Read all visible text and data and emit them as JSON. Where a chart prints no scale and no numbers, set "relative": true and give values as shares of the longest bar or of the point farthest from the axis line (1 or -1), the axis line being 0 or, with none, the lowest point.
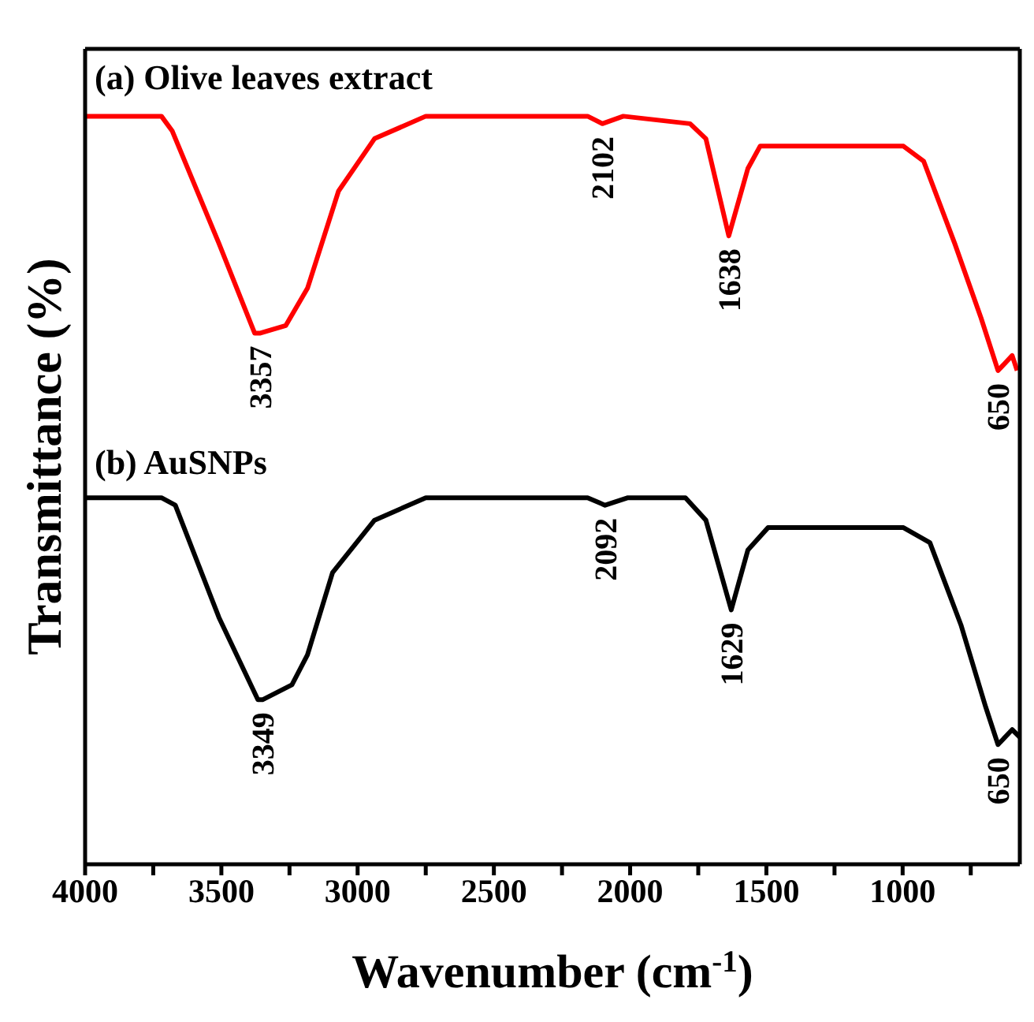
{
  "chart_data": {
    "type": "line",
    "relative": true,
    "xlabel": "Wavenumber (cm$^{-1}$)",
    "ylabel": "Transmittance (%)",
    "xlim": [
      4000,
      570
    ],
    "xticks": [
      4000,
      {
        "value": 3750,
        "label": null
      },
      3500,
      {
        "value": 3250,
        "label": null
      },
      3000,
      {
        "value": 2750,
        "label": null
      },
      2500,
      {
        "value": 2250,
        "label": null
      },
      2000,
      {
        "value": 1750,
        "label": null
      },
      1500,
      {
        "value": 1250,
        "label": null
      },
      1000,
      {
        "value": 750,
        "label": null
      }
    ],
    "series": [
      {
        "name": "(a) Olive leaves extract",
        "color": "#ff0000",
        "x": [
          4000,
          3720,
          3680,
          3509,
          3378,
          3357,
          3264,
          3184,
          3070,
          2938,
          2750,
          2556,
          2368,
          2156,
          2102,
          2025,
          1780,
          1722,
          1638,
          1568,
          1523,
          997,
          923,
          809,
          712,
          650,
          598,
          580
        ],
        "values": [
          1.0,
          1.0,
          0.98,
          0.83,
          0.71,
          0.71,
          0.72,
          0.77,
          0.9,
          0.97,
          1.0,
          1,
          1.0,
          1.0,
          0.99,
          1.0,
          0.99,
          0.97,
          0.84,
          0.93,
          0.96,
          0.96,
          0.94,
          0.83,
          0.73,
          0.66,
          0.68,
          0.66
        ]
      },
      {
        "name": "(b) AuSNPs",
        "color": "#000000",
        "x": [
          4000,
          3720,
          3669,
          3509,
          3366,
          3349,
          3241,
          3184,
          3092,
          2938,
          2750,
          2556,
          2368,
          2156,
          2092,
          2008,
          1797,
          1722,
          1629,
          1568,
          1494,
          997,
          900,
          786,
          695,
          650,
          598,
          570
        ],
        "values": [
          0.49,
          0.49,
          0.48,
          0.33,
          0.22,
          0.22,
          0.24,
          0.28,
          0.39,
          0.46,
          0.49,
          0.49,
          0.49,
          0.49,
          0.48,
          0.49,
          0.49,
          0.46,
          0.34,
          0.42,
          0.45,
          0.45,
          0.43,
          0.32,
          0.21,
          0.16,
          0.18,
          0.17
        ]
      }
    ],
    "annotations": [
      {
        "text": "3357",
        "x": 3357,
        "y": 0.71
      },
      {
        "text": "2102",
        "x": 2102,
        "y": 0.99
      },
      {
        "text": "1638",
        "x": 1638,
        "y": 0.84
      },
      {
        "text": "650",
        "x": 650,
        "y": 0.66
      },
      {
        "text": "3349",
        "x": 3349,
        "y": 0.22
      },
      {
        "text": "2092",
        "x": 2092,
        "y": 0.48
      },
      {
        "text": "1629",
        "x": 1629,
        "y": 0.34
      },
      {
        "text": "650",
        "x": 650,
        "y": 0.16
      }
    ]
  }
}
